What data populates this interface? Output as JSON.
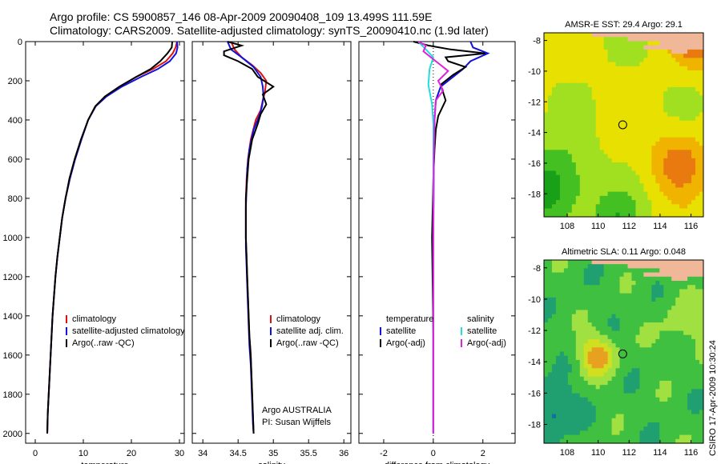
{
  "figure": {
    "title_line1": "Argo profile: CS 5900857_146 08-Apr-2009 20090408_109 13.499S 111.59E",
    "title_line2": "Climatology: CARS2009. Satellite-adjusted climatology: synTS_20090410.nc (1.9d later)",
    "credit": "CSIRO 17-Apr-2009 10:30:24"
  },
  "colors": {
    "clim": "#dd1111",
    "sat": "#1111dd",
    "argo": "#000000",
    "sat_diff": "#22dddd",
    "argo_diff": "#dd22dd"
  },
  "chart_data": [
    {
      "id": "temperature",
      "type": "line",
      "xlabel": "temperature",
      "ylabel": "",
      "xlim": [
        -2,
        31
      ],
      "ylim": [
        2050,
        0
      ],
      "xticks": [
        0,
        10,
        20,
        30
      ],
      "yticks": [
        0,
        200,
        400,
        600,
        800,
        1000,
        1200,
        1400,
        1600,
        1800,
        2000
      ],
      "legend": [
        "climatology",
        "satellite-adjusted climatology",
        "Argo(..raw -QC)"
      ],
      "series": [
        {
          "name": "climatology",
          "color": "clim",
          "points": [
            [
              29.5,
              0
            ],
            [
              29.2,
              30
            ],
            [
              28.6,
              60
            ],
            [
              27.2,
              100
            ],
            [
              24.5,
              140
            ],
            [
              21,
              180
            ],
            [
              17.5,
              230
            ],
            [
              14.5,
              280
            ],
            [
              12.5,
              330
            ],
            [
              11,
              400
            ],
            [
              9.6,
              500
            ],
            [
              8.3,
              600
            ],
            [
              7.2,
              700
            ],
            [
              6.3,
              800
            ],
            [
              5.6,
              900
            ],
            [
              5.1,
              1000
            ],
            [
              4.6,
              1100
            ],
            [
              4.2,
              1200
            ],
            [
              3.9,
              1300
            ],
            [
              3.6,
              1400
            ],
            [
              3.4,
              1500
            ],
            [
              3.2,
              1600
            ],
            [
              3,
              1700
            ],
            [
              2.8,
              1800
            ],
            [
              2.6,
              1900
            ],
            [
              2.5,
              2000
            ]
          ]
        },
        {
          "name": "satellite-adjusted climatology",
          "color": "sat",
          "points": [
            [
              29.5,
              0
            ],
            [
              29.6,
              30
            ],
            [
              29.3,
              60
            ],
            [
              28,
              100
            ],
            [
              25.5,
              140
            ],
            [
              22,
              180
            ],
            [
              18,
              230
            ],
            [
              14.8,
              280
            ],
            [
              12.6,
              330
            ],
            [
              11,
              400
            ],
            [
              9.6,
              500
            ],
            [
              8.3,
              600
            ],
            [
              7.2,
              700
            ],
            [
              6.3,
              800
            ],
            [
              5.6,
              900
            ],
            [
              5.1,
              1000
            ],
            [
              4.6,
              1100
            ],
            [
              4.2,
              1200
            ],
            [
              3.9,
              1300
            ],
            [
              3.6,
              1400
            ],
            [
              3.4,
              1500
            ],
            [
              3.2,
              1600
            ],
            [
              3,
              1700
            ],
            [
              2.8,
              1800
            ],
            [
              2.6,
              1900
            ],
            [
              2.5,
              2000
            ]
          ]
        },
        {
          "name": "Argo(..raw -QC)",
          "color": "argo",
          "points": [
            [
              28.5,
              0
            ],
            [
              28.4,
              30
            ],
            [
              27.5,
              60
            ],
            [
              26,
              100
            ],
            [
              24,
              140
            ],
            [
              21,
              180
            ],
            [
              17.5,
              230
            ],
            [
              14.5,
              280
            ],
            [
              12.5,
              330
            ],
            [
              11,
              400
            ],
            [
              9.5,
              500
            ],
            [
              8.2,
              600
            ],
            [
              7.1,
              700
            ],
            [
              6.3,
              800
            ],
            [
              5.6,
              900
            ],
            [
              5.1,
              1000
            ],
            [
              4.6,
              1100
            ],
            [
              4.2,
              1200
            ],
            [
              3.9,
              1300
            ],
            [
              3.6,
              1400
            ],
            [
              3.4,
              1500
            ],
            [
              3.2,
              1600
            ],
            [
              3,
              1700
            ],
            [
              2.8,
              1800
            ],
            [
              2.6,
              1900
            ],
            [
              2.5,
              2000
            ]
          ]
        }
      ]
    },
    {
      "id": "salinity",
      "type": "line",
      "xlabel": "salinity",
      "ylabel": "",
      "xlim": [
        33.85,
        36.1
      ],
      "ylim": [
        2050,
        0
      ],
      "xticks": [
        34,
        34.5,
        35,
        35.5,
        36
      ],
      "xticklabels": [
        "34",
        "34.5",
        "35",
        "35.5",
        "36"
      ],
      "yticks": [
        0,
        200,
        400,
        600,
        800,
        1000,
        1200,
        1400,
        1600,
        1800,
        2000
      ],
      "legend": [
        "climatology",
        "satellite adj. clim.",
        "Argo(..raw -QC)"
      ],
      "annotation": [
        "Argo AUSTRALIA",
        "PI: Susan Wijffels"
      ],
      "series": [
        {
          "name": "climatology",
          "color": "clim",
          "points": [
            [
              34.4,
              0
            ],
            [
              34.45,
              40
            ],
            [
              34.55,
              80
            ],
            [
              34.7,
              120
            ],
            [
              34.82,
              160
            ],
            [
              34.9,
              200
            ],
            [
              34.88,
              260
            ],
            [
              34.85,
              300
            ],
            [
              34.82,
              350
            ],
            [
              34.75,
              400
            ],
            [
              34.68,
              500
            ],
            [
              34.64,
              600
            ],
            [
              34.62,
              700
            ],
            [
              34.61,
              800
            ],
            [
              34.61,
              900
            ],
            [
              34.61,
              1000
            ],
            [
              34.62,
              1100
            ],
            [
              34.63,
              1200
            ],
            [
              34.64,
              1300
            ],
            [
              34.65,
              1400
            ],
            [
              34.66,
              1500
            ],
            [
              34.68,
              1600
            ],
            [
              34.69,
              1700
            ],
            [
              34.7,
              1800
            ],
            [
              34.71,
              1900
            ],
            [
              34.72,
              2000
            ]
          ]
        },
        {
          "name": "satellite adj. clim.",
          "color": "sat",
          "points": [
            [
              34.35,
              0
            ],
            [
              34.4,
              40
            ],
            [
              34.55,
              80
            ],
            [
              34.72,
              130
            ],
            [
              34.82,
              180
            ],
            [
              34.85,
              230
            ],
            [
              34.86,
              280
            ],
            [
              34.84,
              330
            ],
            [
              34.8,
              380
            ],
            [
              34.72,
              450
            ],
            [
              34.66,
              550
            ],
            [
              34.63,
              650
            ],
            [
              34.62,
              750
            ],
            [
              34.61,
              850
            ],
            [
              34.61,
              950
            ],
            [
              34.61,
              1050
            ],
            [
              34.62,
              1150
            ],
            [
              34.63,
              1250
            ],
            [
              34.64,
              1350
            ],
            [
              34.65,
              1450
            ],
            [
              34.66,
              1550
            ],
            [
              34.68,
              1650
            ],
            [
              34.69,
              1750
            ],
            [
              34.7,
              1850
            ],
            [
              34.71,
              1950
            ],
            [
              34.72,
              2000
            ]
          ]
        },
        {
          "name": "Argo(..raw -QC)",
          "color": "argo",
          "points": [
            [
              34.35,
              0
            ],
            [
              34.55,
              20
            ],
            [
              34.3,
              50
            ],
            [
              34.3,
              70
            ],
            [
              34.5,
              100
            ],
            [
              34.7,
              140
            ],
            [
              34.78,
              180
            ],
            [
              35,
              230
            ],
            [
              34.85,
              270
            ],
            [
              34.9,
              320
            ],
            [
              34.82,
              370
            ],
            [
              34.78,
              420
            ],
            [
              34.7,
              500
            ],
            [
              34.65,
              600
            ],
            [
              34.63,
              700
            ],
            [
              34.61,
              800
            ],
            [
              34.61,
              900
            ],
            [
              34.61,
              1000
            ],
            [
              34.62,
              1100
            ],
            [
              34.63,
              1200
            ],
            [
              34.64,
              1300
            ],
            [
              34.65,
              1400
            ],
            [
              34.66,
              1500
            ],
            [
              34.68,
              1600
            ],
            [
              34.69,
              1700
            ],
            [
              34.7,
              1800
            ],
            [
              34.71,
              1900
            ],
            [
              34.72,
              2000
            ]
          ]
        }
      ]
    },
    {
      "id": "difference",
      "type": "line",
      "xlabel": "difference from climatology",
      "ylabel": "",
      "xlim": [
        -3,
        3.3
      ],
      "ylim": [
        2050,
        0
      ],
      "xticks": [
        -2,
        0,
        2
      ],
      "yticks": [
        0,
        200,
        400,
        600,
        800,
        1000,
        1200,
        1400,
        1600,
        1800,
        2000
      ],
      "legend_temperature": [
        "temperature",
        "satellite",
        "Argo(-adj)"
      ],
      "legend_salinity": [
        "salinity",
        "satellite",
        "Argo(-adj)"
      ],
      "series": [
        {
          "name": "temperature satellite",
          "color": "sat",
          "points": [
            [
              1.5,
              0
            ],
            [
              1.6,
              30
            ],
            [
              2.2,
              60
            ],
            [
              1.5,
              100
            ],
            [
              1.2,
              140
            ],
            [
              0.8,
              180
            ],
            [
              0.3,
              230
            ],
            [
              0.1,
              300
            ],
            [
              0.05,
              400
            ],
            [
              0.02,
              600
            ],
            [
              0,
              1000
            ],
            [
              0,
              1500
            ],
            [
              0,
              2000
            ]
          ]
        },
        {
          "name": "temperature Argo(-adj)",
          "color": "argo",
          "points": [
            [
              -0.8,
              0
            ],
            [
              -0.2,
              20
            ],
            [
              0.7,
              40
            ],
            [
              2.1,
              60
            ],
            [
              0.5,
              80
            ],
            [
              0.6,
              100
            ],
            [
              1.3,
              130
            ],
            [
              0.8,
              170
            ],
            [
              0.3,
              220
            ],
            [
              0.5,
              300
            ],
            [
              0.2,
              380
            ],
            [
              0.1,
              450
            ],
            [
              0.05,
              550
            ],
            [
              0,
              700
            ],
            [
              -0.05,
              1000
            ],
            [
              0,
              1500
            ],
            [
              0,
              2000
            ]
          ]
        },
        {
          "name": "salinity satellite",
          "color": "sat_diff",
          "points": [
            [
              -0.6,
              0
            ],
            [
              -0.3,
              40
            ],
            [
              0,
              80
            ],
            [
              -0.15,
              140
            ],
            [
              -0.2,
              220
            ],
            [
              -0.05,
              320
            ],
            [
              0,
              420
            ],
            [
              0,
              800
            ],
            [
              0,
              1200
            ],
            [
              0,
              2000
            ]
          ]
        },
        {
          "name": "salinity Argo(-adj)",
          "color": "argo_diff",
          "points": [
            [
              -0.6,
              0
            ],
            [
              -0.3,
              20
            ],
            [
              -0.4,
              50
            ],
            [
              0.1,
              100
            ],
            [
              0.6,
              150
            ],
            [
              0.2,
              200
            ],
            [
              0.4,
              250
            ],
            [
              0.1,
              300
            ],
            [
              0.05,
              400
            ],
            [
              0.02,
              600
            ],
            [
              0,
              1000
            ],
            [
              0,
              2000
            ]
          ]
        }
      ]
    },
    {
      "id": "sst_map",
      "type": "heatmap",
      "title": "AMSR-E SST: 29.4 Argo: 29.1",
      "xlim": [
        106.5,
        116.8
      ],
      "ylim": [
        -19.5,
        -7.5
      ],
      "xticks": [
        108,
        110,
        112,
        114,
        116
      ],
      "yticks": [
        -8,
        -10,
        -12,
        -14,
        -16,
        -18
      ],
      "marker": {
        "lon": 111.59,
        "lat": -13.499
      },
      "colorscale": [
        "#18a018",
        "#44c022",
        "#a0e020",
        "#e8e000",
        "#f0b400",
        "#e87a10",
        "#c83c00"
      ]
    },
    {
      "id": "sla_map",
      "type": "heatmap",
      "title": "Altimetric SLA: 0.11 Argo: 0.048",
      "xlim": [
        106.5,
        116.8
      ],
      "ylim": [
        -19.2,
        -7.5
      ],
      "xticks": [
        108,
        110,
        112,
        114,
        116
      ],
      "yticks": [
        -8,
        -10,
        -12,
        -14,
        -16,
        -18
      ],
      "marker": {
        "lon": 111.59,
        "lat": -13.499
      },
      "colorscale": [
        "#1070a0",
        "#20a070",
        "#40c040",
        "#a0e040",
        "#d0e020",
        "#e8a020",
        "#d06010"
      ]
    }
  ]
}
